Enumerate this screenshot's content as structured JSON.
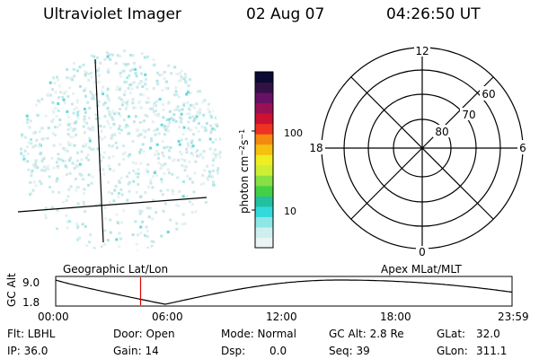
{
  "header": {
    "title": "Ultraviolet Imager",
    "date": "02 Aug 07",
    "time": "04:26:50 UT"
  },
  "colorbar": {
    "label_html": "photon cm<tspan baseline-shift=\"super\" font-size=\"8\">−2</tspan>s<tspan baseline-shift=\"super\" font-size=\"8\">−1</tspan>",
    "ticks": [
      "100",
      "10"
    ],
    "colors": [
      "#eaf4f4",
      "#cfeeee",
      "#8ee6e6",
      "#33dada",
      "#22c0a0",
      "#44d044",
      "#88e044",
      "#ccee33",
      "#eeee22",
      "#f5c010",
      "#f58a10",
      "#ee3322",
      "#cc1133",
      "#991155",
      "#661166",
      "#331144",
      "#0a0a33"
    ]
  },
  "polar_plot": {
    "mlt_labels": {
      "top": "12",
      "left": "18",
      "right": "6",
      "bottom": "0"
    },
    "lat_labels": [
      "60",
      "70",
      "80"
    ]
  },
  "timeline": {
    "y_axis_label": "GC Alt",
    "y_ticks": [
      "9.0",
      "1.8"
    ],
    "x_ticks": [
      "00:00",
      "06:00",
      "12:00",
      "18:00",
      "23:59"
    ],
    "left_caption": "Geographic Lat/Lon",
    "right_caption": "Apex MLat/MLT",
    "current_time_fraction": 0.186
  },
  "info": {
    "filter": "Flt: LBHL",
    "ip": "IP: 36.0",
    "door": "Door: Open",
    "gain": "Gain: 14",
    "mode": "Mode: Normal",
    "dsp": "Dsp:",
    "dsp_value": "0.0",
    "gc_alt": "GC Alt: 2.8 Re",
    "seq": "Seq: 39",
    "glat": "GLat:",
    "glat_value": "32.0",
    "glon": "GLon:",
    "glon_value": "311.1"
  }
}
